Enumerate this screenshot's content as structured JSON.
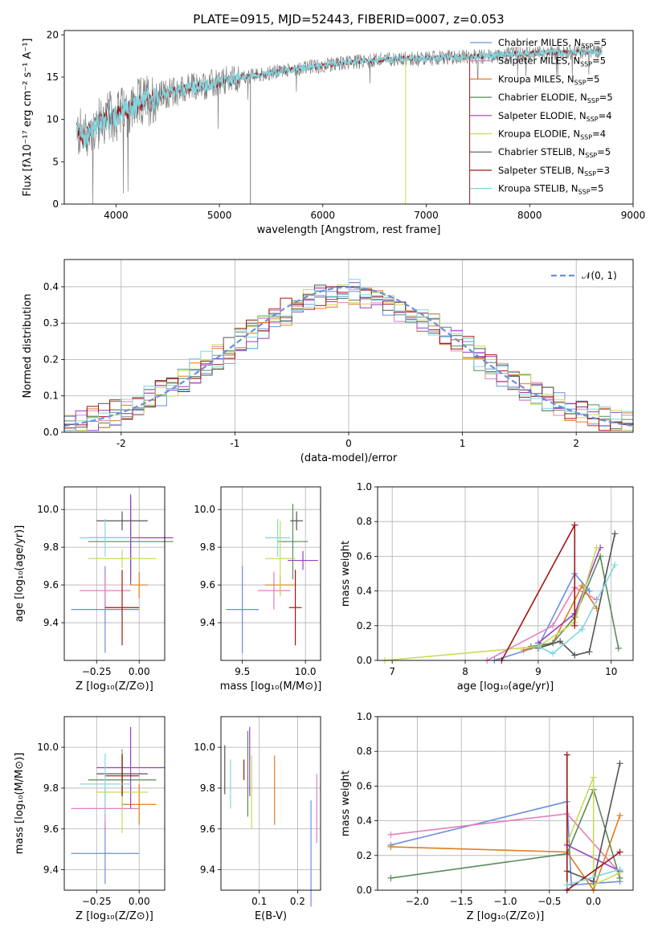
{
  "title": "PLATE=0915, MJD=52443, FIBERID=0007, z=0.053",
  "model_colors": [
    "#6a8fdc",
    "#e27fbf",
    "#e07e1f",
    "#5a8a5a",
    "#9a3fc0",
    "#c9d95a",
    "#555555",
    "#a01515",
    "#80d7e0"
  ],
  "chart_data": [
    {
      "id": "spectrum",
      "type": "line",
      "xlabel": "wavelength [Angstrom, rest frame]",
      "ylabel": "Flux [fλ10⁻¹⁷ erg cm⁻² s⁻¹ A⁻¹]",
      "xlim": [
        3500,
        9000
      ],
      "ylim": [
        0,
        20.5
      ],
      "xticks": [
        4000,
        5000,
        6000,
        7000,
        8000,
        9000
      ],
      "yticks": [
        0,
        5,
        10,
        15,
        20
      ],
      "grid": false,
      "legend_position": "right",
      "legend": [
        {
          "label": "Chabrier MILES, N",
          "sub": "SSP",
          "eq": "=5"
        },
        {
          "label": "Salpeter MILES, N",
          "sub": "SSP",
          "eq": "=5"
        },
        {
          "label": "Kroupa MILES, N",
          "sub": "SSP",
          "eq": "=5"
        },
        {
          "label": "Chabrier ELODIE, N",
          "sub": "SSP",
          "eq": "=5"
        },
        {
          "label": "Salpeter ELODIE, N",
          "sub": "SSP",
          "eq": "=4"
        },
        {
          "label": "Kroupa ELODIE, N",
          "sub": "SSP",
          "eq": "=4"
        },
        {
          "label": "Chabrier STELIB, N",
          "sub": "SSP",
          "eq": "=5"
        },
        {
          "label": "Salpeter STELIB, N",
          "sub": "SSP",
          "eq": "=3"
        },
        {
          "label": "Kroupa STELIB, N",
          "sub": "SSP",
          "eq": "=5"
        }
      ],
      "continuum": {
        "x": [
          3620,
          3700,
          3800,
          3900,
          4000,
          4100,
          4200,
          4300,
          4400,
          4500,
          4600,
          4700,
          4800,
          4900,
          5000,
          5200,
          5400,
          5600,
          5800,
          6000,
          6200,
          6400,
          6600,
          6800,
          7000,
          7200,
          7400,
          7600,
          7800,
          8000,
          8200,
          8400,
          8600,
          8700
        ],
        "y": [
          8.5,
          8.0,
          9.2,
          10.0,
          10.5,
          11.0,
          11.6,
          12.3,
          12.7,
          13.1,
          13.4,
          13.7,
          13.9,
          14.1,
          14.3,
          14.9,
          15.3,
          15.7,
          16.1,
          16.3,
          16.7,
          16.9,
          17.1,
          17.2,
          17.2,
          17.3,
          17.4,
          17.5,
          17.7,
          17.8,
          17.9,
          17.9,
          18.0,
          18.0
        ]
      },
      "dropouts": [
        {
          "x": 5300,
          "y": 0
        },
        {
          "x": 6800,
          "y": 0
        },
        {
          "x": 7420,
          "y": 0
        }
      ]
    },
    {
      "id": "residuals",
      "type": "histogram",
      "xlabel": "(data-model)/error",
      "ylabel": "Normed distribution",
      "xlim": [
        -2.5,
        2.5
      ],
      "ylim": [
        0,
        0.475
      ],
      "xticks": [
        -2,
        -1,
        0,
        1,
        2
      ],
      "yticks": [
        0.0,
        0.1,
        0.2,
        0.3,
        0.4
      ],
      "grid": true,
      "legend": [
        {
          "label": "𝒩(0, 1)"
        }
      ],
      "legend_position": "top-right",
      "bin_width": 0.1,
      "bin_start": -2.5
    },
    {
      "id": "age-vs-Z",
      "type": "errorbar",
      "xlabel": "Z [log₁₀(Z/Z⊙)]",
      "ylabel": "age  [log₁₀(age/yr)]",
      "xlim": [
        -0.44,
        0.15
      ],
      "ylim": [
        9.2,
        10.12
      ],
      "xticks": [
        -0.25,
        0.0
      ],
      "yticks": [
        9.4,
        9.6,
        9.8,
        10.0
      ],
      "xtick_labels": [
        "−0.25",
        "0.00"
      ],
      "points": [
        {
          "x": -0.2,
          "xerr": 0.2,
          "y": 9.47,
          "yerr": 0.23
        },
        {
          "x": -0.2,
          "xerr": 0.15,
          "y": 9.57,
          "yerr": 0.1
        },
        {
          "x": 0.0,
          "xerr": 0.05,
          "y": 9.6,
          "yerr": 0.07
        },
        {
          "x": -0.05,
          "xerr": 0.25,
          "y": 9.83,
          "yerr": 0.23
        },
        {
          "x": -0.05,
          "xerr": 0.25,
          "y": 9.85,
          "yerr": 0.23
        },
        {
          "x": -0.1,
          "xerr": 0.2,
          "y": 9.74,
          "yerr": 0.05
        },
        {
          "x": -0.1,
          "xerr": 0.15,
          "y": 9.94,
          "yerr": 0.05
        },
        {
          "x": -0.1,
          "xerr": 0.1,
          "y": 9.48,
          "yerr": 0.2
        },
        {
          "x": -0.2,
          "xerr": 0.15,
          "y": 9.85,
          "yerr": 0.1
        }
      ]
    },
    {
      "id": "age-vs-mass",
      "type": "errorbar",
      "xlabel": "mass [log₁₀(M/M⊙)]",
      "ylabel": "",
      "xlim": [
        9.33,
        10.12
      ],
      "ylim": [
        9.2,
        10.12
      ],
      "xticks": [
        9.5,
        10.0
      ],
      "yticks": [
        9.4,
        9.6,
        9.8,
        10.0
      ],
      "xtick_labels": [
        "9.5",
        "10.0"
      ],
      "points": [
        {
          "x": 9.5,
          "xerr": 0.13,
          "y": 9.47,
          "yerr": 0.23
        },
        {
          "x": 9.75,
          "xerr": 0.13,
          "y": 9.57,
          "yerr": 0.1
        },
        {
          "x": 9.8,
          "xerr": 0.12,
          "y": 9.6,
          "yerr": 0.05
        },
        {
          "x": 9.9,
          "xerr": 0.12,
          "y": 9.83,
          "yerr": 0.2
        },
        {
          "x": 9.98,
          "xerr": 0.12,
          "y": 9.73,
          "yerr": 0.05
        },
        {
          "x": 9.8,
          "xerr": 0.12,
          "y": 9.74,
          "yerr": 0.2
        },
        {
          "x": 9.93,
          "xerr": 0.05,
          "y": 9.94,
          "yerr": 0.05
        },
        {
          "x": 9.92,
          "xerr": 0.05,
          "y": 9.48,
          "yerr": 0.2
        },
        {
          "x": 9.78,
          "xerr": 0.1,
          "y": 9.85,
          "yerr": 0.1
        }
      ]
    },
    {
      "id": "massweight-vs-age",
      "type": "line",
      "xlabel": "age  [log₁₀(age/yr)]",
      "ylabel": "mass weight",
      "xlim": [
        6.8,
        10.3
      ],
      "ylim": [
        0,
        1.0
      ],
      "xticks": [
        7,
        8,
        9,
        10
      ],
      "yticks": [
        0.0,
        0.2,
        0.4,
        0.6,
        0.8,
        1.0
      ],
      "xtick_labels": [
        "7",
        "8",
        "9",
        "10"
      ],
      "series": [
        {
          "x": [
            8.4,
            9.0,
            9.5,
            9.7
          ],
          "y": [
            0.0,
            0.08,
            0.5,
            0.4
          ]
        },
        {
          "x": [
            8.3,
            9.2,
            9.5,
            9.8
          ],
          "y": [
            0.0,
            0.2,
            0.42,
            0.35
          ]
        },
        {
          "x": [
            8.8,
            9.2,
            9.6,
            9.8
          ],
          "y": [
            0.06,
            0.1,
            0.43,
            0.3
          ]
        },
        {
          "x": [
            8.9,
            9.2,
            9.5,
            9.85,
            10.1
          ],
          "y": [
            0.08,
            0.1,
            0.25,
            0.6,
            0.07
          ]
        },
        {
          "x": [
            9.0,
            9.5,
            9.85
          ],
          "y": [
            0.1,
            0.27,
            0.65
          ]
        },
        {
          "x": [
            6.9,
            9.0,
            9.5,
            9.8
          ],
          "y": [
            0.0,
            0.08,
            0.22,
            0.65
          ]
        },
        {
          "x": [
            9.0,
            9.3,
            9.5,
            9.7,
            10.05
          ],
          "y": [
            0.07,
            0.11,
            0.03,
            0.05,
            0.73
          ]
        },
        {
          "x": [
            8.5,
            9.5,
            9.5
          ],
          "y": [
            0.0,
            0.78,
            0.2
          ]
        },
        {
          "x": [
            9.0,
            9.2,
            9.6,
            10.05
          ],
          "y": [
            0.08,
            0.04,
            0.18,
            0.55
          ]
        }
      ]
    },
    {
      "id": "mass-vs-Z",
      "type": "errorbar",
      "xlabel": "Z [log₁₀(Z/Z⊙)]",
      "ylabel": "mass [log₁₀(M/M⊙)]",
      "xlim": [
        -0.44,
        0.15
      ],
      "ylim": [
        9.3,
        10.15
      ],
      "xticks": [
        -0.25,
        0.0
      ],
      "yticks": [
        9.4,
        9.6,
        9.8,
        10.0
      ],
      "xtick_labels": [
        "−0.25",
        "0.00"
      ],
      "points": [
        {
          "x": -0.2,
          "xerr": 0.2,
          "y": 9.48,
          "yerr": 0.15
        },
        {
          "x": -0.2,
          "xerr": 0.2,
          "y": 9.7,
          "yerr": 0.1
        },
        {
          "x": 0.0,
          "xerr": 0.1,
          "y": 9.72,
          "yerr": 0.1
        },
        {
          "x": -0.1,
          "xerr": 0.2,
          "y": 9.84,
          "yerr": 0.15
        },
        {
          "x": -0.05,
          "xerr": 0.2,
          "y": 9.9,
          "yerr": 0.2
        },
        {
          "x": -0.1,
          "xerr": 0.15,
          "y": 9.78,
          "yerr": 0.2
        },
        {
          "x": -0.1,
          "xerr": 0.15,
          "y": 9.87,
          "yerr": 0.1
        },
        {
          "x": -0.1,
          "xerr": 0.1,
          "y": 9.86,
          "yerr": 0.1
        },
        {
          "x": -0.2,
          "xerr": 0.15,
          "y": 9.82,
          "yerr": 0.15
        }
      ]
    },
    {
      "id": "mass-vs-EBV",
      "type": "errorbar",
      "xlabel": "E(B-V)",
      "ylabel": "",
      "xlim": [
        0.0,
        0.26
      ],
      "ylim": [
        9.3,
        10.15
      ],
      "xticks": [
        0.1,
        0.2
      ],
      "yticks": [
        9.4,
        9.6,
        9.8,
        10.0
      ],
      "xtick_labels": [
        "0.1",
        "0.2"
      ],
      "points": [
        {
          "x": 0.235,
          "xerr": 0.0,
          "y": 9.48,
          "yerr": 0.26
        },
        {
          "x": 0.25,
          "xerr": 0.0,
          "y": 9.7,
          "yerr": 0.17
        },
        {
          "x": 0.14,
          "xerr": 0.0,
          "y": 9.79,
          "yerr": 0.17
        },
        {
          "x": 0.07,
          "xerr": 0.0,
          "y": 9.87,
          "yerr": 0.21
        },
        {
          "x": 0.075,
          "xerr": 0.0,
          "y": 9.93,
          "yerr": 0.17
        },
        {
          "x": 0.08,
          "xerr": 0.0,
          "y": 9.78,
          "yerr": 0.18
        },
        {
          "x": 0.01,
          "xerr": 0.0,
          "y": 9.89,
          "yerr": 0.12
        },
        {
          "x": 0.06,
          "xerr": 0.0,
          "y": 9.89,
          "yerr": 0.05
        },
        {
          "x": 0.025,
          "xerr": 0.0,
          "y": 9.82,
          "yerr": 0.12
        }
      ]
    },
    {
      "id": "massweight-vs-Z",
      "type": "line",
      "xlabel": "Z [log₁₀(Z/Z⊙)]",
      "ylabel": "mass weight",
      "xlim": [
        -2.45,
        0.45
      ],
      "ylim": [
        0,
        1.0
      ],
      "xticks": [
        -2.0,
        -1.5,
        -1.0,
        -0.5,
        0.0
      ],
      "yticks": [
        0.0,
        0.2,
        0.4,
        0.6,
        0.8,
        1.0
      ],
      "xtick_labels": [
        "−2.0",
        "−1.5",
        "−1.0",
        "−0.5",
        "0.0"
      ],
      "series": [
        {
          "x": [
            -2.3,
            -0.3,
            -0.25,
            0.3
          ],
          "y": [
            0.26,
            0.51,
            0.03,
            0.05
          ]
        },
        {
          "x": [
            -2.3,
            -0.3,
            0.3
          ],
          "y": [
            0.32,
            0.44,
            0.1
          ]
        },
        {
          "x": [
            -2.3,
            -0.3,
            0.0,
            0.3
          ],
          "y": [
            0.25,
            0.22,
            0.0,
            0.43
          ]
        },
        {
          "x": [
            -2.3,
            -0.3,
            0.0,
            0.3
          ],
          "y": [
            0.07,
            0.21,
            0.58,
            0.07
          ]
        },
        {
          "x": [
            -0.3,
            0.3
          ],
          "y": [
            0.26,
            0.11
          ]
        },
        {
          "x": [
            -0.3,
            0.0,
            0.0,
            0.3
          ],
          "y": [
            0.27,
            0.65,
            0.03,
            0.1
          ]
        },
        {
          "x": [
            -0.3,
            0.0,
            0.3
          ],
          "y": [
            0.11,
            0.05,
            0.73
          ]
        },
        {
          "x": [
            -0.3,
            -0.3,
            0.3
          ],
          "y": [
            0.78,
            0.0,
            0.22
          ]
        },
        {
          "x": [
            -0.3,
            0.3
          ],
          "y": [
            0.03,
            0.12
          ]
        }
      ]
    }
  ]
}
